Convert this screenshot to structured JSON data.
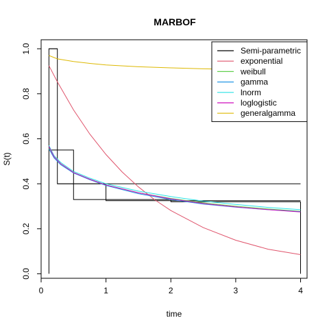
{
  "chart_data": {
    "type": "line",
    "title": "MARBOF",
    "xlabel": "time",
    "ylabel": "S(t)",
    "xlim": [
      0,
      4.1
    ],
    "ylim": [
      -0.02,
      1.04
    ],
    "x_ticks": [
      "0",
      "1",
      "2",
      "3",
      "4"
    ],
    "y_ticks": [
      "0.0",
      "0.2",
      "0.4",
      "0.6",
      "0.8",
      "1.0"
    ],
    "grid": false,
    "legend_position": "top-right",
    "series": [
      {
        "name": "Semi-parametric",
        "color": "#000000",
        "kind": "step",
        "bands": [
          {
            "x": [
              0.12,
              0.25,
              0.25,
              4.0
            ],
            "y": [
              1.0,
              1.0,
              0.4,
              0.4
            ]
          },
          {
            "x": [
              0.12,
              0.5,
              0.5,
              1.0,
              1.0,
              2.0,
              2.0,
              4.0
            ],
            "y": [
              0.55,
              0.55,
              0.4,
              0.4,
              0.33,
              0.33,
              0.32,
              0.32
            ]
          },
          {
            "x": [
              0.25,
              0.5,
              0.5,
              1.0,
              1.0,
              4.0
            ],
            "y": [
              0.4,
              0.4,
              0.33,
              0.33,
              0.325,
              0.325
            ]
          },
          {
            "x": [
              0.12,
              0.12,
              0.25
            ],
            "y": [
              0.0,
              1.0,
              1.0
            ]
          },
          {
            "x": [
              4.0,
              4.0
            ],
            "y": [
              0.32,
              0.0
            ]
          }
        ]
      },
      {
        "name": "exponential",
        "color": "#DF536B",
        "x": [
          0.12,
          0.25,
          0.5,
          0.75,
          1.0,
          1.25,
          1.5,
          1.75,
          2.0,
          2.5,
          3.0,
          3.5,
          4.0
        ],
        "y": [
          0.925,
          0.853,
          0.728,
          0.621,
          0.53,
          0.452,
          0.386,
          0.329,
          0.281,
          0.205,
          0.149,
          0.109,
          0.085
        ]
      },
      {
        "name": "weibull",
        "color": "#61D04F",
        "x": [
          0.12,
          0.2,
          0.3,
          0.5,
          0.75,
          1.0,
          1.5,
          2.0,
          2.5,
          3.0,
          3.5,
          4.0
        ],
        "y": [
          0.56,
          0.52,
          0.49,
          0.45,
          0.42,
          0.395,
          0.36,
          0.335,
          0.315,
          0.3,
          0.288,
          0.278
        ]
      },
      {
        "name": "gamma",
        "color": "#2297E6",
        "x": [
          0.12,
          0.2,
          0.3,
          0.5,
          0.75,
          1.0,
          1.5,
          2.0,
          2.5,
          3.0,
          3.5,
          4.0
        ],
        "y": [
          0.555,
          0.515,
          0.485,
          0.448,
          0.418,
          0.392,
          0.356,
          0.33,
          0.31,
          0.296,
          0.285,
          0.276
        ]
      },
      {
        "name": "lnorm",
        "color": "#28E2E5",
        "x": [
          0.12,
          0.2,
          0.3,
          0.5,
          0.75,
          1.0,
          1.5,
          2.0,
          2.5,
          3.0,
          3.5,
          4.0
        ],
        "y": [
          0.57,
          0.525,
          0.495,
          0.455,
          0.425,
          0.4,
          0.367,
          0.343,
          0.323,
          0.308,
          0.295,
          0.285
        ]
      },
      {
        "name": "loglogistic",
        "color": "#CD0BBC",
        "x": [
          0.12,
          0.2,
          0.3,
          0.5,
          0.75,
          1.0,
          1.5,
          2.0,
          2.5,
          3.0,
          3.5,
          4.0
        ],
        "y": [
          0.565,
          0.52,
          0.49,
          0.45,
          0.42,
          0.395,
          0.36,
          0.333,
          0.312,
          0.297,
          0.285,
          0.275
        ]
      },
      {
        "name": "generalgamma",
        "color": "#DDB800",
        "x": [
          0.12,
          0.25,
          0.5,
          0.75,
          1.0,
          1.5,
          2.0,
          2.5,
          3.0,
          3.5,
          4.0
        ],
        "y": [
          0.97,
          0.955,
          0.943,
          0.935,
          0.928,
          0.92,
          0.915,
          0.911,
          0.908,
          0.905,
          0.903
        ]
      }
    ]
  }
}
